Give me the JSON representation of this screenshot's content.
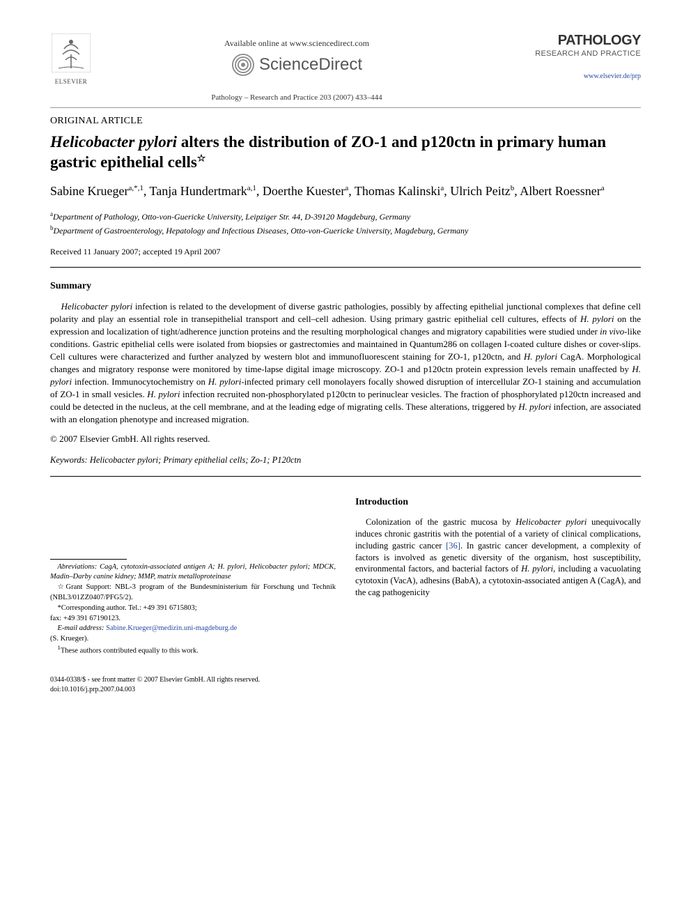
{
  "header": {
    "elsevier_label": "ELSEVIER",
    "available_text": "Available online at www.sciencedirect.com",
    "sd_label": "ScienceDirect",
    "journal_ref": "Pathology – Research and Practice 203 (2007) 433–444",
    "journal_name": "PATHOLOGY",
    "journal_sub": "RESEARCH AND PRACTICE",
    "journal_url": "www.elsevier.de/prp"
  },
  "article_type": "ORIGINAL ARTICLE",
  "title_parts": {
    "ital": "Helicobacter pylori",
    "rest": " alters the distribution of ZO-1 and p120ctn in primary human gastric epithelial cells",
    "star": "☆"
  },
  "authors_html": "Sabine Krueger<sup>a,*,1</sup>, Tanja Hundertmark<sup>a,1</sup>, Doerthe Kuester<sup>a</sup>, Thomas Kalinski<sup>a</sup>, Ulrich Peitz<sup>b</sup>, Albert Roessner<sup>a</sup>",
  "affiliations": [
    {
      "sup": "a",
      "text": "Department of Pathology, Otto-von-Guericke University, Leipziger Str. 44, D-39120 Magdeburg, Germany"
    },
    {
      "sup": "b",
      "text": "Department of Gastroenterology, Hepatology and Infectious Diseases, Otto-von-Guericke University, Magdeburg, Germany"
    }
  ],
  "dates": "Received 11 January 2007; accepted 19 April 2007",
  "summary_head": "Summary",
  "abstract": "Helicobacter pylori infection is related to the development of diverse gastric pathologies, possibly by affecting epithelial junctional complexes that define cell polarity and play an essential role in transepithelial transport and cell–cell adhesion. Using primary gastric epithelial cell cultures, effects of H. pylori on the expression and localization of tight/adherence junction proteins and the resulting morphological changes and migratory capabilities were studied under in vivo-like conditions. Gastric epithelial cells were isolated from biopsies or gastrectomies and maintained in Quantum286 on collagen I-coated culture dishes or cover-slips. Cell cultures were characterized and further analyzed by western blot and immunofluorescent staining for ZO-1, p120ctn, and H. pylori CagA. Morphological changes and migratory response were monitored by time-lapse digital image microscopy. ZO-1 and p120ctn protein expression levels remain unaffected by H. pylori infection. Immunocytochemistry on H. pylori-infected primary cell monolayers focally showed disruption of intercellular ZO-1 staining and accumulation of ZO-1 in small vesicles. H. pylori infection recruited non-phosphorylated p120ctn to perinuclear vesicles. The fraction of phosphorylated p120ctn increased and could be detected in the nucleus, at the cell membrane, and at the leading edge of migrating cells. These alterations, triggered by H. pylori infection, are associated with an elongation phenotype and increased migration.",
  "copyright": "© 2007 Elsevier GmbH. All rights reserved.",
  "keywords_label": "Keywords:",
  "keywords_value": " Helicobacter pylori; Primary epithelial cells; Zo-1; P120ctn",
  "footnotes": {
    "abbrev": "Abreviations: CagA, cytotoxin-associated antigen A; H. pylori, Helicobacter pylori; MDCK, Madin–Darby canine kidney; MMP, matrix metalloproteinase",
    "grant": "☆Grant Support: NBL-3 program of the Bundesministerium für Forschung und Technik (NBL3/01ZZ0407/PFG5/2).",
    "corr": "*Corresponding author. Tel.: +49 391 6715803;",
    "fax": "fax: +49 391 67190123.",
    "email_label": "E-mail address: ",
    "email": "Sabine.Krueger@medizin.uni-magdeburg.de",
    "email_tail": "(S. Krueger).",
    "equal": "1These authors contributed equally to this work."
  },
  "intro_head": "Introduction",
  "intro_text": "Colonization of the gastric mucosa by Helicobacter pylori unequivocally induces chronic gastritis with the potential of a variety of clinical complications, including gastric cancer [36]. In gastric cancer development, a complexity of factors is involved as genetic diversity of the organism, host susceptibility, environmental factors, and bacterial factors of H. pylori, including a vacuolating cytotoxin (VacA), adhesins (BabA), a cytotoxin-associated antigen A (CagA), and the cag pathogenicity",
  "footer": {
    "issn": "0344-0338/$ - see front matter © 2007 Elsevier GmbH. All rights reserved.",
    "doi": "doi:10.1016/j.prp.2007.04.003"
  },
  "colors": {
    "link": "#2a4aa0",
    "text": "#000000",
    "gray": "#555555"
  }
}
